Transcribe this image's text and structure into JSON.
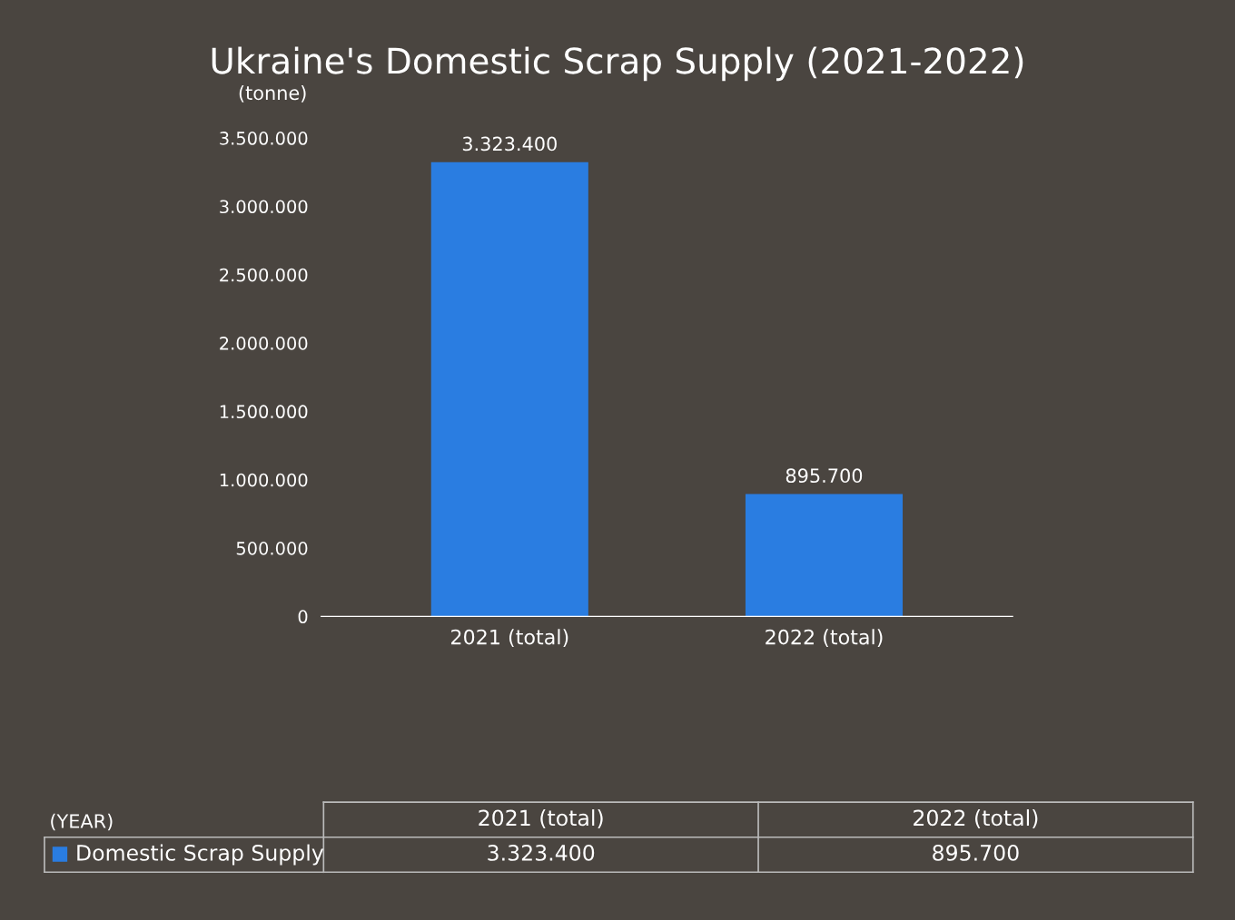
{
  "chart_data": {
    "type": "bar",
    "title": "Ukraine's Domestic Scrap Supply (2021-2022)",
    "ylabel": "(tonne)",
    "annotations": [
      "(YEAR)"
    ],
    "categories": [
      "2021 (total)",
      "2022 (total)"
    ],
    "series": [
      {
        "name": "Domestic Scrap Supply",
        "color": "#2a7de1",
        "values": [
          3323400,
          895700
        ],
        "value_labels": [
          "3.323.400",
          "895.700"
        ]
      }
    ],
    "ylim": [
      0,
      3500000
    ],
    "yticks": [
      0,
      {
        "value": 500000,
        "label": "500.000"
      },
      {
        "value": 1000000,
        "label": "1.000.000"
      },
      {
        "value": 1500000,
        "label": "1.500.000"
      },
      {
        "value": 2000000,
        "label": "2.000.000"
      },
      {
        "value": 2500000,
        "label": "2.500.000"
      },
      {
        "value": 3000000,
        "label": "3.000.000"
      },
      {
        "value": 3500000,
        "label": "3.500.000"
      }
    ],
    "grid": false,
    "legend": "bottom"
  }
}
